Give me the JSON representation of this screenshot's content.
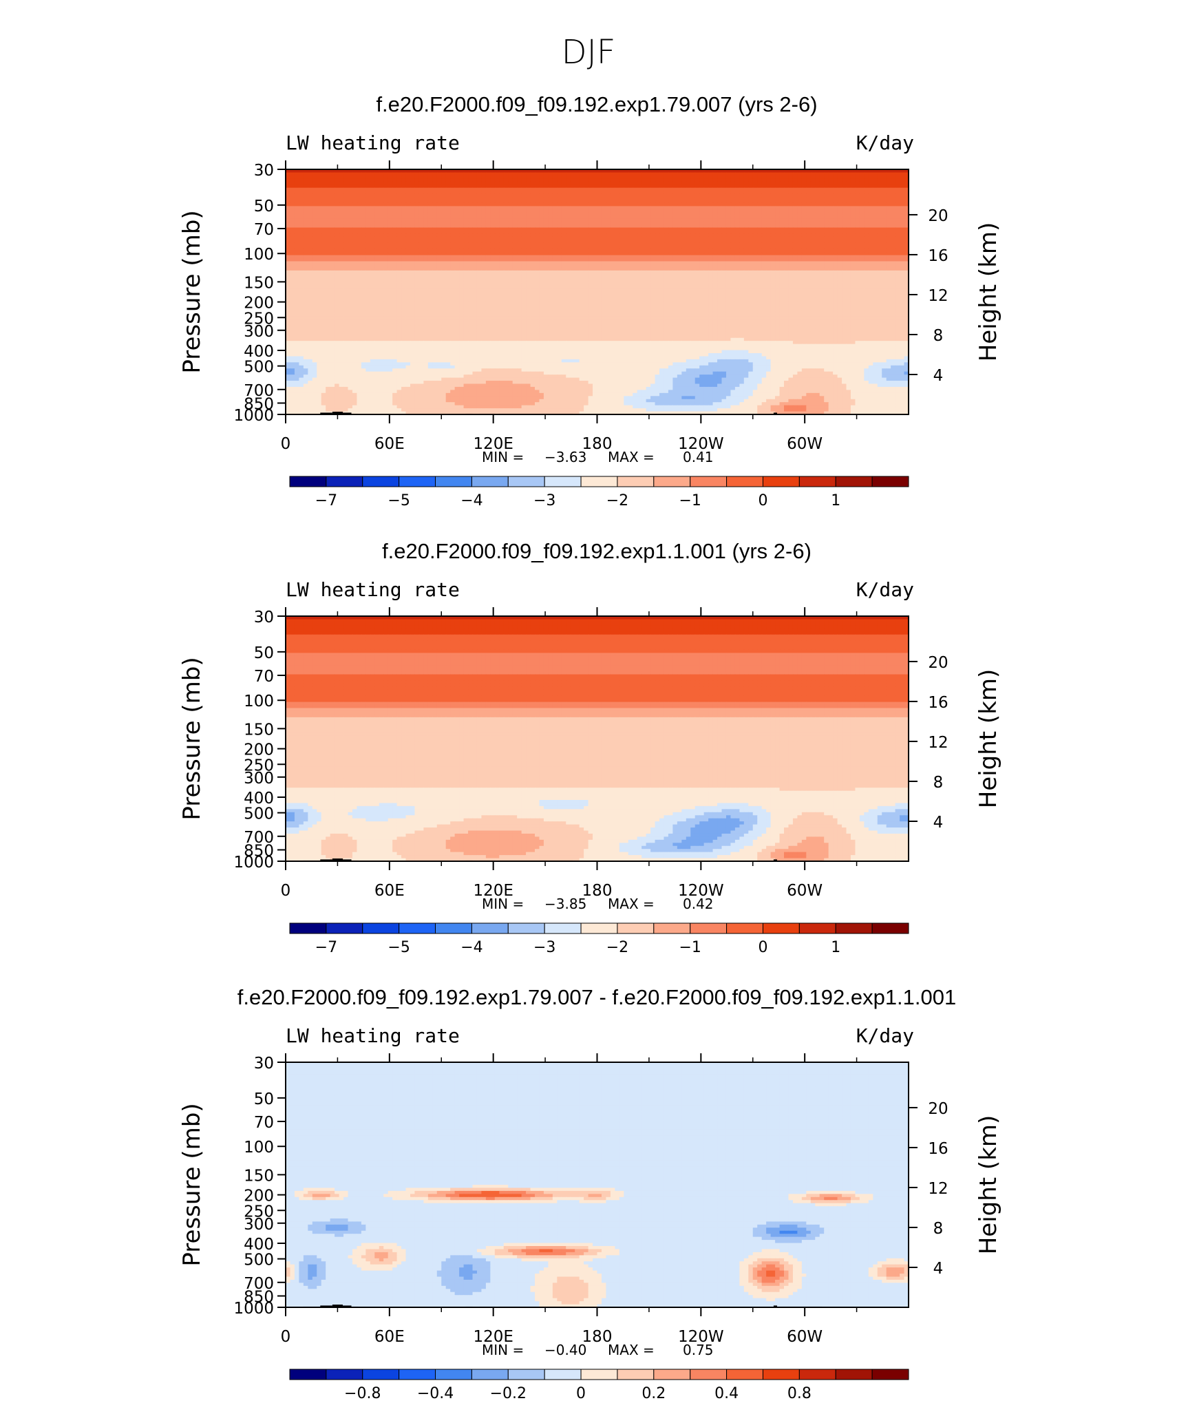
{
  "figure": {
    "title": "DJF"
  },
  "colormap": [
    "#00007d",
    "#0b22b8",
    "#0b44e0",
    "#1e64f5",
    "#4286f0",
    "#79a8f0",
    "#a8c7f5",
    "#d6e7fb",
    "#fde9d6",
    "#fdcdb4",
    "#fca98a",
    "#f98562",
    "#f56436",
    "#e8400f",
    "#ca280c",
    "#a11406",
    "#7a0000"
  ],
  "terrain_color": "#000000",
  "chart_data": [
    {
      "type": "heatmap",
      "title": "f.e20.F2000.f09_f09.192.exp1.79.007 (yrs 2-6)",
      "variable": "LW heating rate",
      "units": "K/day",
      "xlabel": "",
      "ylabel": "Pressure (mb)",
      "y2label": "Height (km)",
      "x_ticks": [
        "0",
        "60E",
        "120E",
        "180",
        "120W",
        "60W"
      ],
      "x_lon": [
        0,
        60,
        120,
        180,
        240,
        300
      ],
      "xlim": [
        0,
        360
      ],
      "y_ticks": [
        "30",
        "50",
        "70",
        "100",
        "150",
        "200",
        "250",
        "300",
        "400",
        "500",
        "700",
        "850",
        "1000"
      ],
      "y_values": [
        30,
        50,
        70,
        100,
        150,
        200,
        250,
        300,
        400,
        500,
        700,
        850,
        1000
      ],
      "ylim": [
        1000,
        30
      ],
      "y_scale": "log",
      "y2_ticks": [
        "20",
        "16",
        "12",
        "8",
        "4"
      ],
      "y2_values": [
        20,
        16,
        12,
        8,
        4
      ],
      "min_label": "MIN =",
      "min_value": "−3.63",
      "max_label": "MAX =",
      "max_value": "0.41",
      "colorbar_labels": [
        "−7",
        "−5",
        "−4",
        "−3",
        "−2",
        "−1",
        "0",
        "1"
      ],
      "colorbar_label_boundaries": [
        1,
        3,
        5,
        7,
        9,
        11,
        13,
        15
      ],
      "field": {
        "kind": "base",
        "features": [
          {
            "lon": 120,
            "p": 760,
            "rlon": 48,
            "rp": 0.34,
            "amp": 1.0
          },
          {
            "lon": 60,
            "p": 500,
            "rlon": 40,
            "rp": 0.25,
            "amp": -0.4
          },
          {
            "lon": 95,
            "p": 520,
            "rlon": 14,
            "rp": 0.15,
            "amp": -0.35
          },
          {
            "lon": 305,
            "p": 820,
            "rlon": 20,
            "rp": 0.4,
            "amp": 0.75
          },
          {
            "lon": 30,
            "p": 790,
            "rlon": 10,
            "rp": 0.22,
            "amp": 0.5
          },
          {
            "lon": 352,
            "p": 560,
            "rlon": 18,
            "rp": 0.18,
            "amp": -1.0
          },
          {
            "lon": 5,
            "p": 530,
            "rlon": 10,
            "rp": 0.18,
            "amp": -0.7
          },
          {
            "lon": 243,
            "p": 620,
            "rlon": 25,
            "rp": 0.25,
            "amp": -1.35
          },
          {
            "lon": 225,
            "p": 820,
            "rlon": 30,
            "rp": 0.14,
            "amp": -1.0
          },
          {
            "lon": 262,
            "p": 480,
            "rlon": 18,
            "rp": 0.2,
            "amp": -0.8
          },
          {
            "lon": 162,
            "p": 470,
            "rlon": 30,
            "rp": 0.14,
            "amp": -0.4
          },
          {
            "lon": 290,
            "p": 920,
            "rlon": 16,
            "rp": 0.1,
            "amp": 0.9
          }
        ]
      }
    },
    {
      "type": "heatmap",
      "title": "f.e20.F2000.f09_f09.192.exp1.1.001 (yrs 2-6)",
      "variable": "LW heating rate",
      "units": "K/day",
      "xlabel": "",
      "ylabel": "Pressure (mb)",
      "y2label": "Height (km)",
      "x_ticks": [
        "0",
        "60E",
        "120E",
        "180",
        "120W",
        "60W"
      ],
      "x_lon": [
        0,
        60,
        120,
        180,
        240,
        300
      ],
      "xlim": [
        0,
        360
      ],
      "y_ticks": [
        "30",
        "50",
        "70",
        "100",
        "150",
        "200",
        "250",
        "300",
        "400",
        "500",
        "700",
        "850",
        "1000"
      ],
      "y_values": [
        30,
        50,
        70,
        100,
        150,
        200,
        250,
        300,
        400,
        500,
        700,
        850,
        1000
      ],
      "ylim": [
        1000,
        30
      ],
      "y_scale": "log",
      "y2_ticks": [
        "20",
        "16",
        "12",
        "8",
        "4"
      ],
      "y2_values": [
        20,
        16,
        12,
        8,
        4
      ],
      "min_label": "MIN =",
      "min_value": "−3.85",
      "max_label": "MAX =",
      "max_value": "0.42",
      "colorbar_labels": [
        "−7",
        "−5",
        "−4",
        "−3",
        "−2",
        "−1",
        "0",
        "1"
      ],
      "colorbar_label_boundaries": [
        1,
        3,
        5,
        7,
        9,
        11,
        13,
        15
      ],
      "field": {
        "kind": "base",
        "features": [
          {
            "lon": 120,
            "p": 770,
            "rlon": 48,
            "rp": 0.33,
            "amp": 1.0
          },
          {
            "lon": 60,
            "p": 500,
            "rlon": 40,
            "rp": 0.25,
            "amp": -0.45
          },
          {
            "lon": 160,
            "p": 440,
            "rlon": 28,
            "rp": 0.16,
            "amp": -0.5
          },
          {
            "lon": 305,
            "p": 800,
            "rlon": 20,
            "rp": 0.4,
            "amp": 0.8
          },
          {
            "lon": 30,
            "p": 800,
            "rlon": 10,
            "rp": 0.22,
            "amp": 0.5
          },
          {
            "lon": 352,
            "p": 550,
            "rlon": 18,
            "rp": 0.18,
            "amp": -1.1
          },
          {
            "lon": 5,
            "p": 520,
            "rlon": 10,
            "rp": 0.18,
            "amp": -0.7
          },
          {
            "lon": 243,
            "p": 640,
            "rlon": 25,
            "rp": 0.25,
            "amp": -1.4
          },
          {
            "lon": 222,
            "p": 820,
            "rlon": 30,
            "rp": 0.14,
            "amp": -1.0
          },
          {
            "lon": 262,
            "p": 540,
            "rlon": 18,
            "rp": 0.2,
            "amp": -0.8
          },
          {
            "lon": 290,
            "p": 920,
            "rlon": 16,
            "rp": 0.1,
            "amp": 0.9
          }
        ]
      }
    },
    {
      "type": "heatmap",
      "title": "f.e20.F2000.f09_f09.192.exp1.79.007 - f.e20.F2000.f09_f09.192.exp1.1.001",
      "variable": "LW heating rate",
      "units": "K/day",
      "xlabel": "",
      "ylabel": "Pressure (mb)",
      "y2label": "Height (km)",
      "x_ticks": [
        "0",
        "60E",
        "120E",
        "180",
        "120W",
        "60W"
      ],
      "x_lon": [
        0,
        60,
        120,
        180,
        240,
        300
      ],
      "xlim": [
        0,
        360
      ],
      "y_ticks": [
        "30",
        "50",
        "70",
        "100",
        "150",
        "200",
        "250",
        "300",
        "400",
        "500",
        "700",
        "850",
        "1000"
      ],
      "y_values": [
        30,
        50,
        70,
        100,
        150,
        200,
        250,
        300,
        400,
        500,
        700,
        850,
        1000
      ],
      "ylim": [
        1000,
        30
      ],
      "y_scale": "log",
      "y2_ticks": [
        "20",
        "16",
        "12",
        "8",
        "4"
      ],
      "y2_values": [
        20,
        16,
        12,
        8,
        4
      ],
      "min_label": "MIN =",
      "min_value": "−0.40",
      "max_label": "MAX =",
      "max_value": "0.75",
      "colorbar_labels": [
        "−0.8",
        "−0.4",
        "−0.2",
        "0",
        "0.2",
        "0.4",
        "0.8"
      ],
      "colorbar_label_boundaries": [
        2,
        4,
        6,
        8,
        10,
        12,
        14
      ],
      "field": {
        "kind": "diff",
        "features": [
          {
            "lon": 118,
            "p": 200,
            "rlon": 40,
            "rp": 0.08,
            "amp": 0.55
          },
          {
            "lon": 20,
            "p": 200,
            "rlon": 12,
            "rp": 0.07,
            "amp": 0.3
          },
          {
            "lon": 180,
            "p": 200,
            "rlon": 12,
            "rp": 0.08,
            "amp": 0.22
          },
          {
            "lon": 315,
            "p": 210,
            "rlon": 18,
            "rp": 0.07,
            "amp": 0.38
          },
          {
            "lon": 150,
            "p": 450,
            "rlon": 30,
            "rp": 0.08,
            "amp": 0.45
          },
          {
            "lon": 55,
            "p": 480,
            "rlon": 12,
            "rp": 0.15,
            "amp": 0.28
          },
          {
            "lon": 280,
            "p": 620,
            "rlon": 12,
            "rp": 0.22,
            "amp": 0.45
          },
          {
            "lon": 352,
            "p": 600,
            "rlon": 12,
            "rp": 0.14,
            "amp": 0.35
          },
          {
            "lon": 165,
            "p": 780,
            "rlon": 16,
            "rp": 0.3,
            "amp": 0.2
          },
          {
            "lon": 15,
            "p": 600,
            "rlon": 8,
            "rp": 0.22,
            "amp": -0.22
          },
          {
            "lon": 30,
            "p": 320,
            "rlon": 15,
            "rp": 0.1,
            "amp": -0.2
          },
          {
            "lon": 290,
            "p": 340,
            "rlon": 16,
            "rp": 0.12,
            "amp": -0.28
          },
          {
            "lon": 105,
            "p": 600,
            "rlon": 12,
            "rp": 0.25,
            "amp": -0.15
          }
        ]
      }
    }
  ]
}
